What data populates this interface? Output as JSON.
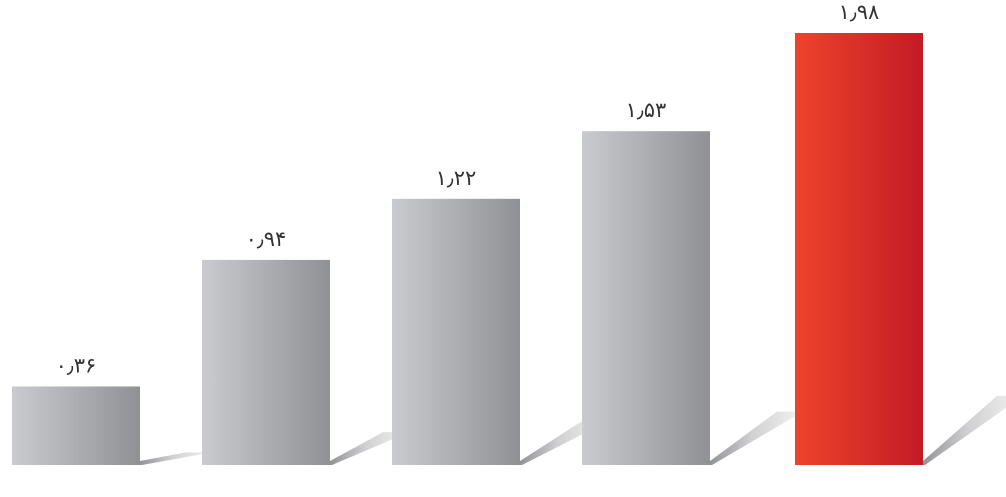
{
  "chart_data": {
    "type": "bar",
    "values": [
      0.36,
      0.94,
      1.22,
      1.53,
      1.98
    ],
    "value_labels": [
      "۰٫۳۶",
      "۰٫۹۴",
      "۱٫۲۲",
      "۱٫۵۳",
      "۱٫۹۸"
    ],
    "ylim": [
      0,
      1.98
    ],
    "grid": false,
    "legend": "none",
    "colors": {
      "default_bar": "#a7a9ac",
      "highlight_bar": "#e12a2a",
      "shadow": "#d8d8d8"
    },
    "highlight_index": 4
  }
}
